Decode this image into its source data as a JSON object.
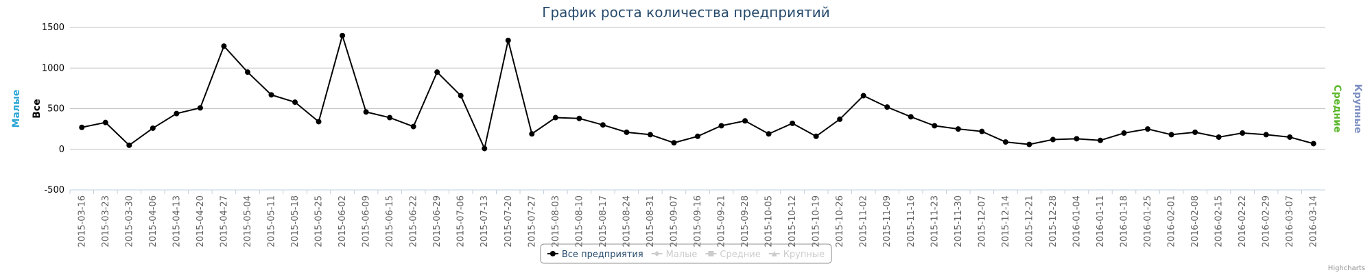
{
  "chart_data": {
    "type": "line",
    "title": "График роста количества предприятий",
    "categories": [
      "2015-03-16",
      "2015-03-23",
      "2015-03-30",
      "2015-04-06",
      "2015-04-13",
      "2015-04-20",
      "2015-04-27",
      "2015-05-04",
      "2015-05-11",
      "2015-05-18",
      "2015-05-25",
      "2015-06-02",
      "2015-06-09",
      "2015-06-15",
      "2015-06-22",
      "2015-06-29",
      "2015-07-06",
      "2015-07-13",
      "2015-07-20",
      "2015-07-27",
      "2015-08-03",
      "2015-08-10",
      "2015-08-17",
      "2015-08-24",
      "2015-08-31",
      "2015-09-07",
      "2015-09-16",
      "2015-09-21",
      "2015-09-28",
      "2015-10-05",
      "2015-10-12",
      "2015-10-19",
      "2015-10-26",
      "2015-11-02",
      "2015-11-09",
      "2015-11-16",
      "2015-11-23",
      "2015-11-30",
      "2015-12-07",
      "2015-12-14",
      "2015-12-21",
      "2015-12-28",
      "2016-01-04",
      "2016-01-11",
      "2016-01-18",
      "2016-01-25",
      "2016-02-01",
      "2016-02-08",
      "2016-02-15",
      "2016-02-22",
      "2016-02-29",
      "2016-03-07",
      "2016-03-14"
    ],
    "series": [
      {
        "name": "Все предприятия",
        "color": "#000000",
        "visible": true,
        "marker": "circle",
        "values": [
          270,
          330,
          50,
          260,
          440,
          510,
          1270,
          950,
          670,
          580,
          340,
          1400,
          460,
          390,
          280,
          950,
          660,
          10,
          1340,
          190,
          390,
          380,
          300,
          210,
          180,
          80,
          160,
          290,
          350,
          190,
          320,
          160,
          370,
          660,
          520,
          400,
          290,
          250,
          220,
          90,
          60,
          120,
          130,
          110,
          200,
          250,
          180,
          210,
          150,
          200,
          180,
          150,
          70
        ]
      },
      {
        "name": "Малые",
        "color": "#2aa6d5",
        "visible": false,
        "marker": "diamond"
      },
      {
        "name": "Средние",
        "color": "#5eb82e",
        "visible": false,
        "marker": "square"
      },
      {
        "name": "Крупные",
        "color": "#7d8fc2",
        "visible": false,
        "marker": "triangle"
      }
    ],
    "ylim": [
      -500,
      1500
    ],
    "yticks": [
      -500,
      0,
      500,
      1000,
      1500
    ],
    "grid": true,
    "y_axis_titles": [
      {
        "text": "Малые",
        "color": "#2aa6d5"
      },
      {
        "text": "Все",
        "color": "#000000"
      }
    ],
    "y2_axis_titles": [
      {
        "text": "Средние",
        "color": "#5eb82e"
      },
      {
        "text": "Крупные",
        "color": "#7d8fc2"
      }
    ],
    "legend": "bottom",
    "credits": "Highcharts"
  }
}
